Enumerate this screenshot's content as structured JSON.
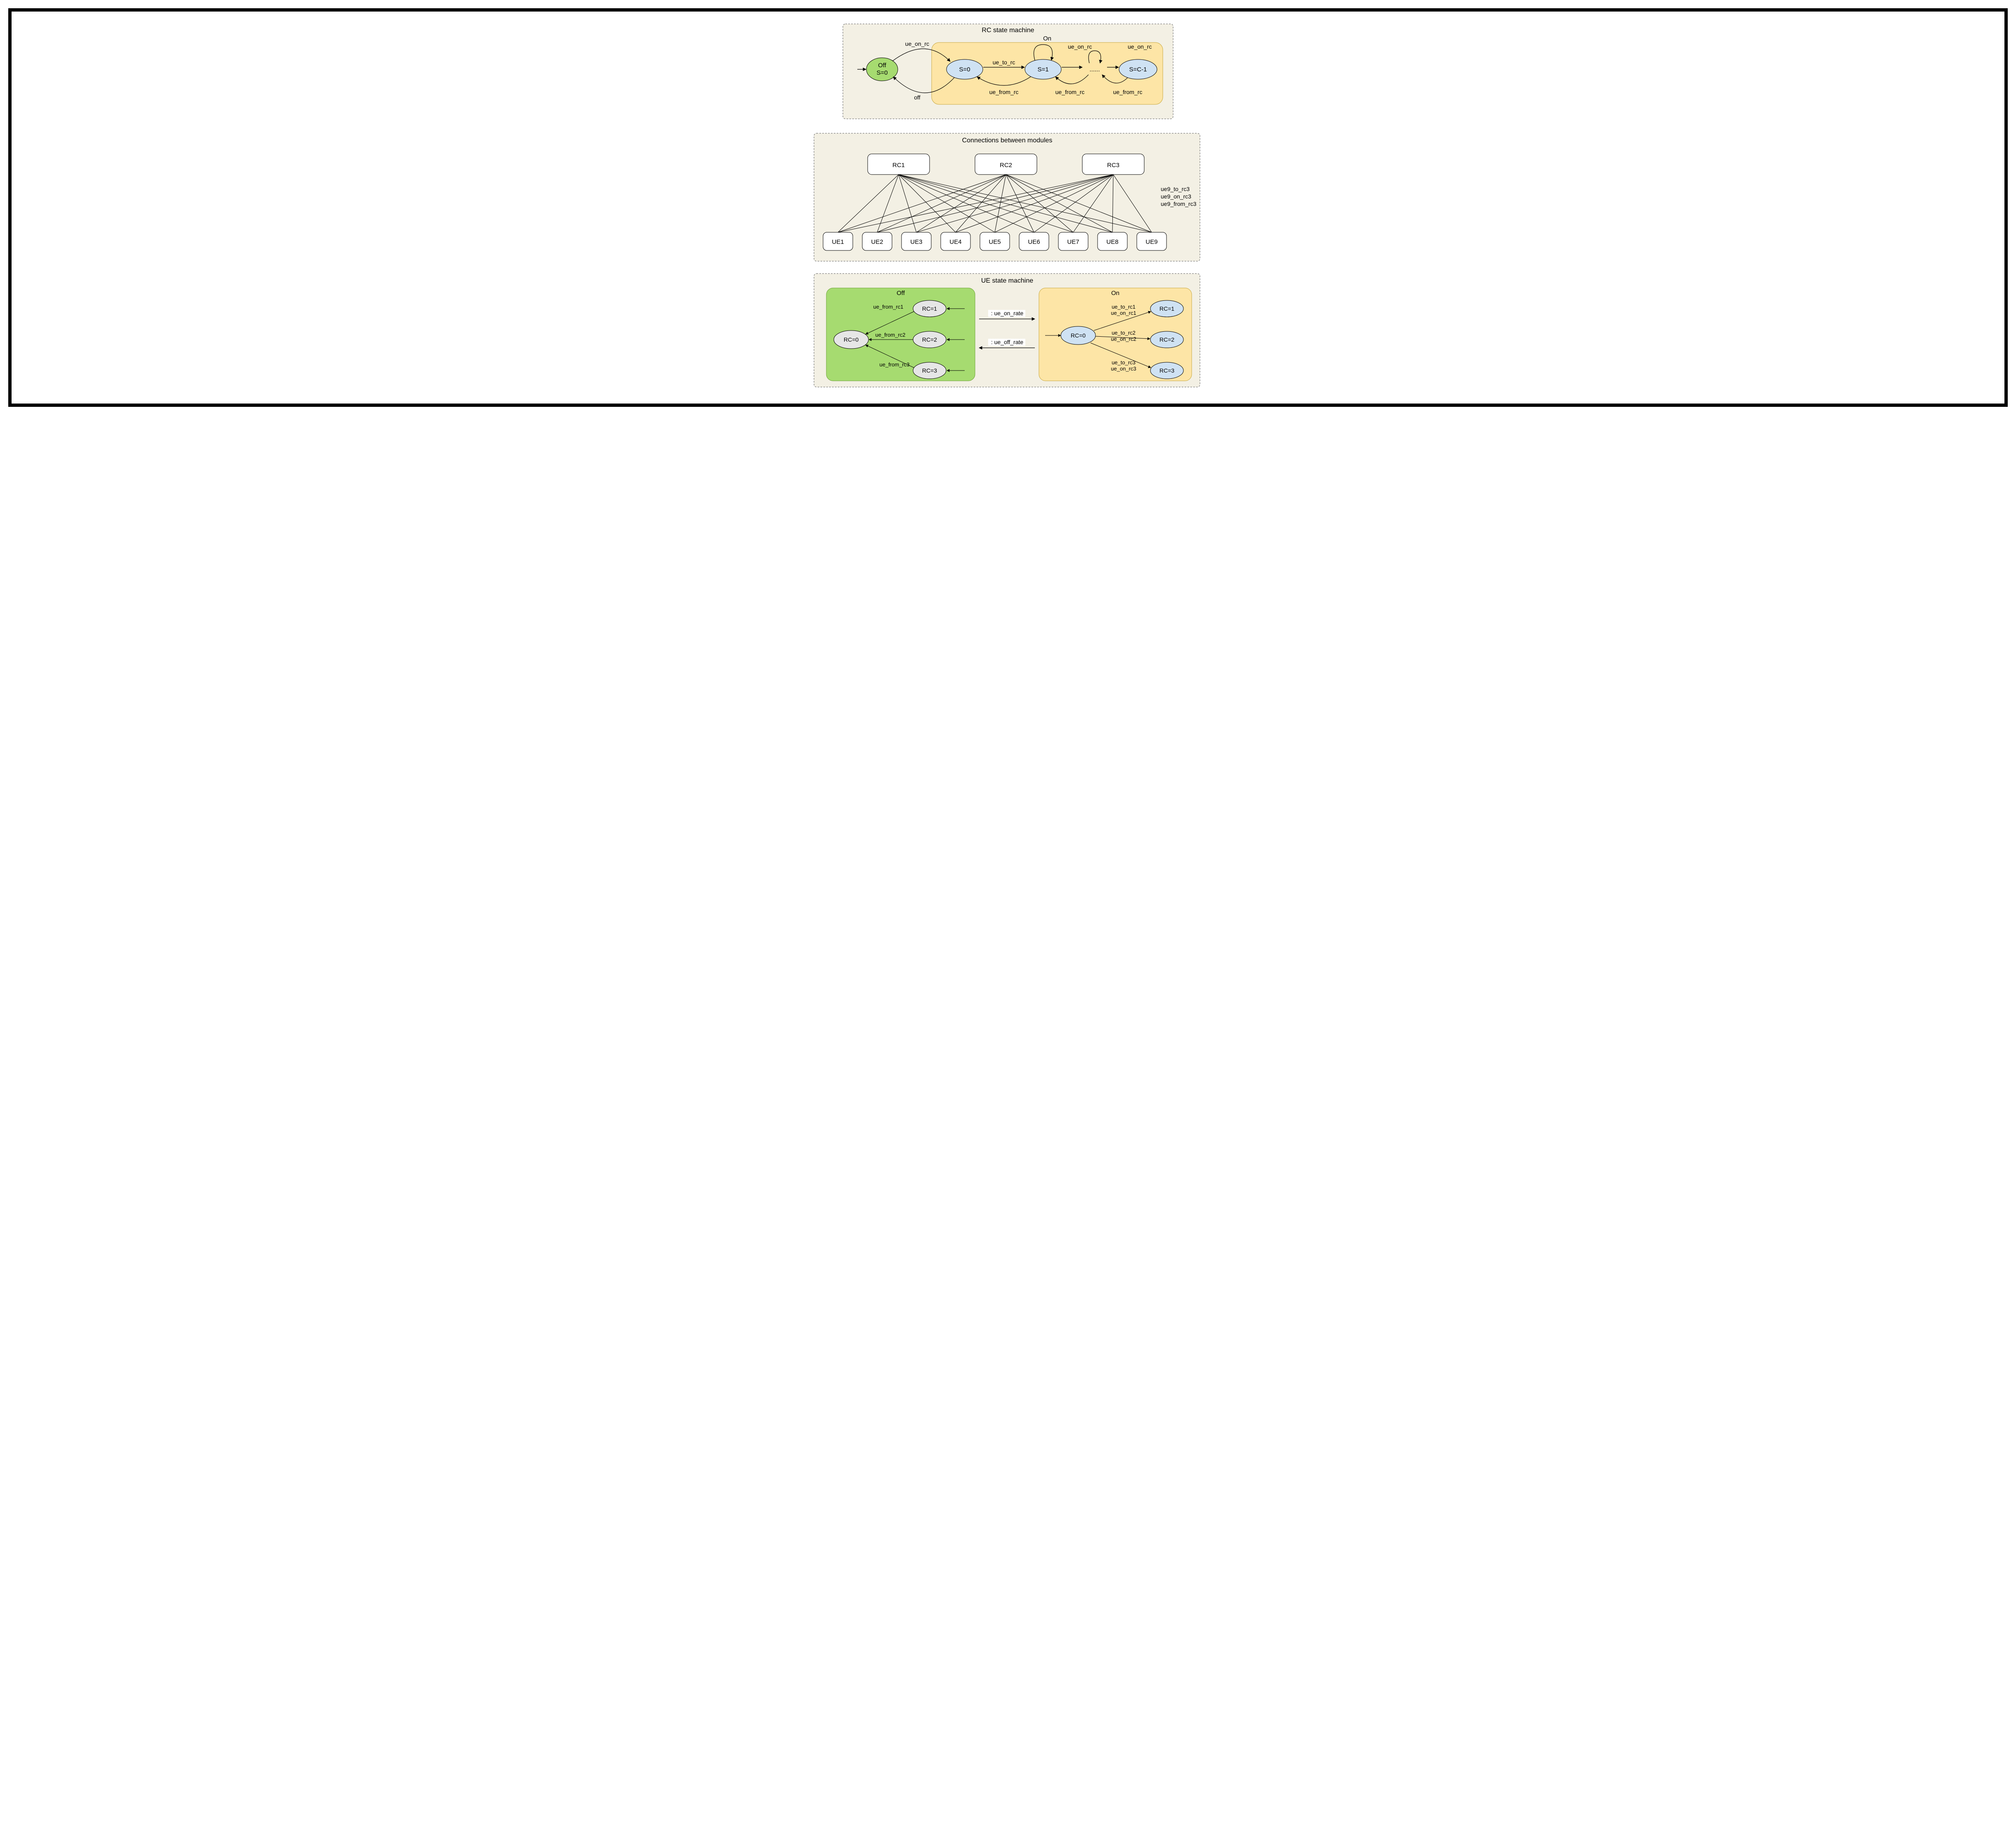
{
  "colors": {
    "panel_bg": "#f3f0e4",
    "panel_border": "#5b5b5b",
    "green": "#a6db70",
    "yellow": "#fde5a6",
    "blue": "#cfe2f3",
    "grey": "#e6e6e6",
    "white": "#ffffff",
    "black": "#000000"
  },
  "fonts": {
    "title": 16,
    "node": 15,
    "label": 14,
    "small": 13
  },
  "panel1": {
    "title": "RC state machine",
    "on_label": "On",
    "off_node": {
      "line1": "Off",
      "line2": "S=0"
    },
    "states": [
      "S=0",
      "S=1",
      "......",
      "S=C-1"
    ],
    "edge_labels": {
      "ue_on_rc_top": "ue_on_rc",
      "ue_to_rc": "ue_to_rc",
      "on_self_to": "ue_on_rc",
      "on_self_to2": "ue_on_rc",
      "back1": "ue_from_rc",
      "back2": "ue_from_rc",
      "back3": "ue_from_rc",
      "off": "off"
    }
  },
  "panel2": {
    "title": "Connections between modules",
    "rcs": [
      "RC1",
      "RC2",
      "RC3"
    ],
    "ues": [
      "UE1",
      "UE2",
      "UE3",
      "UE4",
      "UE5",
      "UE6",
      "UE7",
      "UE8",
      "UE9"
    ],
    "side_labels": [
      "ue9_to_rc3",
      "ue9_on_rc3",
      "ue9_from_rc3"
    ]
  },
  "panel3": {
    "title": "UE state machine",
    "off_label": "Off",
    "on_label": "On",
    "center_labels": [
      ": ue_on_rate",
      ": ue_off_rate"
    ],
    "off_group": {
      "root": "RC=0",
      "branches": [
        "RC=1",
        "RC=2",
        "RC=3"
      ],
      "edge_labels": [
        "ue_from_rc1",
        "ue_from_rc2",
        "ue_from_rc3"
      ]
    },
    "on_group": {
      "root": "RC=0",
      "branches": [
        "RC=1",
        "RC=2",
        "RC=3"
      ],
      "edge_labels": [
        [
          "ue_to_rc1",
          "ue_on_rc1"
        ],
        [
          "ue_to_rc2",
          "ue_on_rc2"
        ],
        [
          "ue_to_rc3",
          "ue_on_rc3"
        ]
      ]
    }
  }
}
